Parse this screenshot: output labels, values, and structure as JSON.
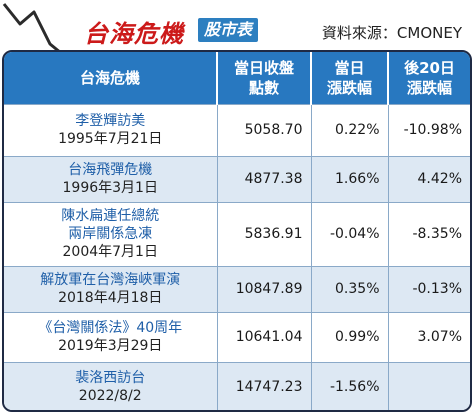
{
  "header": {
    "title": "台海危機",
    "tag": "股市表",
    "source": "資料來源：CMONEY"
  },
  "table": {
    "columns": [
      "台海危機",
      "當日收盤點數",
      "當日漲跌幅",
      "後20日漲跌幅"
    ],
    "col_head": {
      "event": "台海危機",
      "close_l1": "當日收盤",
      "close_l2": "點數",
      "day_l1": "當日",
      "day_l2": "漲跌幅",
      "after_l1": "後20日",
      "after_l2": "漲跌幅"
    },
    "rows": [
      {
        "event": "李登輝訪美",
        "event2": "",
        "date": "1995年7月21日",
        "close": "5058.70",
        "day": "0.22%",
        "after": "-10.98%"
      },
      {
        "event": "台海飛彈危機",
        "event2": "",
        "date": "1996年3月1日",
        "close": "4877.38",
        "day": "1.66%",
        "after": "4.42%"
      },
      {
        "event": "陳水扁連任總統",
        "event2": "兩岸關係急凍",
        "date": "2004年7月1日",
        "close": "5836.91",
        "day": "-0.04%",
        "after": "-8.35%"
      },
      {
        "event": "解放軍在台灣海峽軍演",
        "event2": "",
        "date": "2018年4月18日",
        "close": "10847.89",
        "day": "0.35%",
        "after": "-0.13%"
      },
      {
        "event": "《台灣關係法》40周年",
        "event2": "",
        "date": "2019年3月29日",
        "close": "10641.04",
        "day": "0.99%",
        "after": "3.07%"
      },
      {
        "event": "裴洛西訪台",
        "event2": "",
        "date": "2022/8/2",
        "close": "14747.23",
        "day": "-1.56%",
        "after": ""
      }
    ]
  },
  "colors": {
    "header_bg": "#2878c0",
    "title_red": "#cc1a1a",
    "tag_bg": "#2d7fc0",
    "row_alt": "#dde8f3",
    "event_blue": "#1f5fa8",
    "border": "#1f2a44"
  }
}
